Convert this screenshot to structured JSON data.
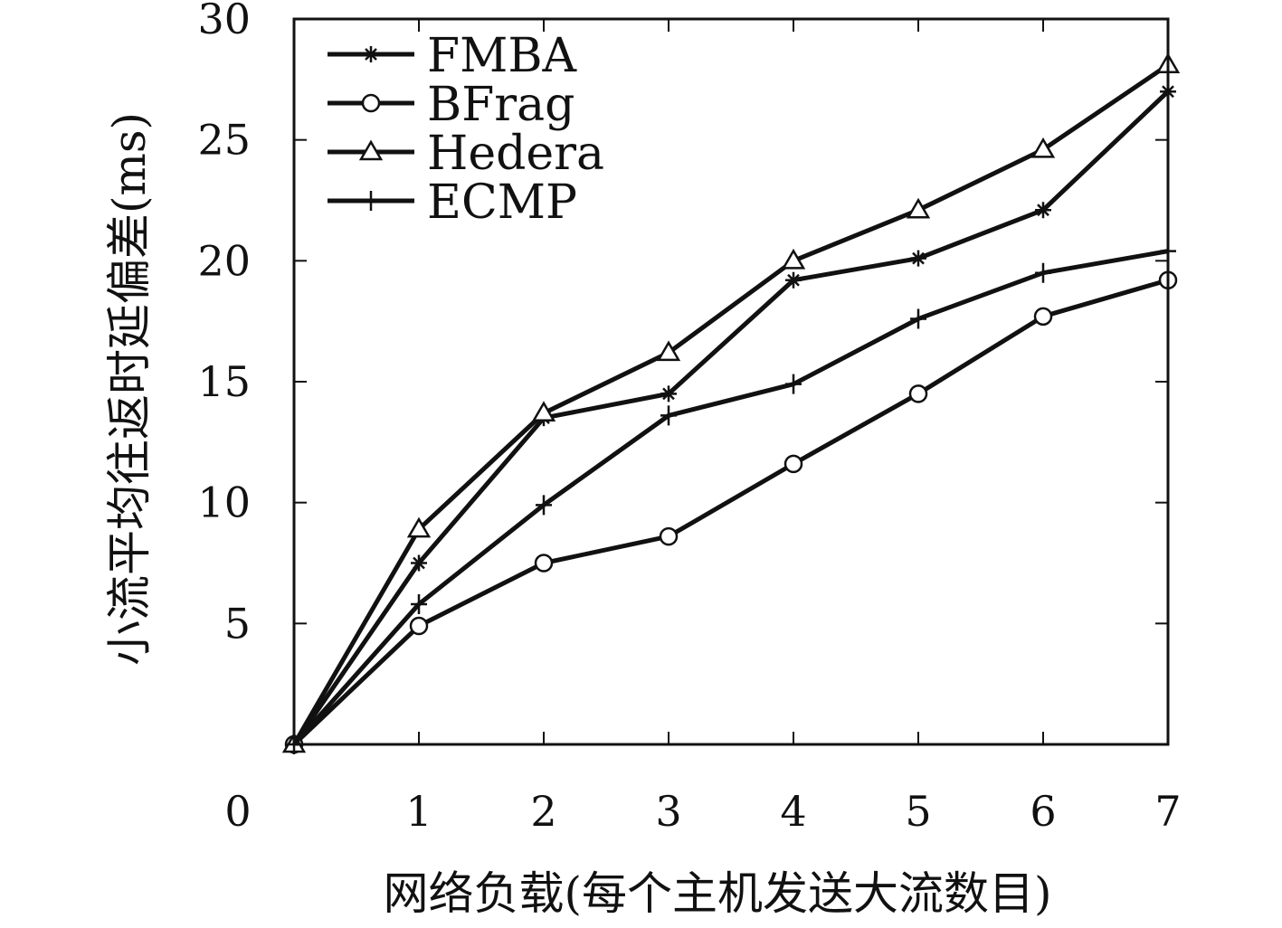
{
  "chart_data": {
    "type": "line",
    "title": "",
    "xlabel": "网络负载(每个主机发送大流数目)",
    "ylabel": "小流平均往返时延偏差(ms)",
    "xlim": [
      0,
      7
    ],
    "ylim": [
      0,
      30
    ],
    "x": [
      0,
      1,
      2,
      3,
      4,
      5,
      6,
      7
    ],
    "x_ticks": [
      1,
      2,
      3,
      4,
      5,
      6,
      7
    ],
    "x_tick_labels": [
      "1",
      "2",
      "3",
      "4",
      "5",
      "6",
      "7"
    ],
    "y_ticks": [
      5,
      10,
      15,
      20,
      25,
      30
    ],
    "y_tick_labels": [
      "5",
      "10",
      "15",
      "20",
      "25",
      "30"
    ],
    "origin_label": "0",
    "grid": false,
    "legend_position": "top-left",
    "series": [
      {
        "name": "FMBA",
        "marker": "star",
        "values": [
          0,
          7.5,
          13.5,
          14.5,
          19.2,
          20.1,
          22.1,
          27.0
        ]
      },
      {
        "name": "BFrag",
        "marker": "circle",
        "values": [
          0,
          4.9,
          7.5,
          8.6,
          11.6,
          14.5,
          17.7,
          19.2
        ]
      },
      {
        "name": "Hedera",
        "marker": "triangle",
        "values": [
          0,
          8.9,
          13.7,
          16.2,
          20.0,
          22.1,
          24.6,
          28.1
        ]
      },
      {
        "name": "ECMP",
        "marker": "plus",
        "values": [
          0,
          5.8,
          9.9,
          13.6,
          14.9,
          17.6,
          19.5,
          20.4
        ]
      }
    ]
  }
}
